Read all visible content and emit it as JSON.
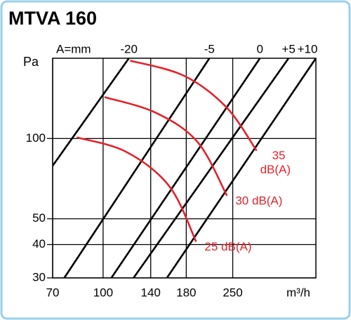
{
  "chart_data": {
    "type": "line",
    "title": "MTVA 160",
    "x_label": "m³/h",
    "y_label": "Pa",
    "line_label": "A=mm",
    "log_x": true,
    "log_y": true,
    "grid": true,
    "xlim": [
      70,
      450
    ],
    "ylim": [
      30,
      200
    ],
    "xticks": [
      70,
      100,
      140,
      180,
      250
    ],
    "yticks": [
      30,
      40,
      50,
      100
    ],
    "series": [
      {
        "name": "-20",
        "color": "#000000",
        "x": [
          70,
          120
        ],
        "values": [
          79,
          200
        ]
      },
      {
        "name": "-5",
        "color": "#000000",
        "x": [
          76,
          212
        ],
        "values": [
          30,
          200
        ]
      },
      {
        "name": "0",
        "color": "#000000",
        "x": [
          106,
          303
        ],
        "values": [
          30,
          200
        ]
      },
      {
        "name": "+5",
        "color": "#000000",
        "x": [
          124,
          371
        ],
        "values": [
          30,
          200
        ]
      },
      {
        "name": "+10",
        "color": "#000000",
        "x": [
          157,
          450
        ],
        "values": [
          30,
          200
        ]
      }
    ],
    "curves": [
      {
        "label": [
          "35",
          "dB(A)"
        ],
        "color": "#e3232c",
        "x": [
          121,
          177,
          239,
          296
        ],
        "values": [
          196,
          172,
          131,
          90
        ]
      },
      {
        "label": [
          "30 dB(A)"
        ],
        "color": "#e3232c",
        "x": [
          101,
          145,
          195,
          240
        ],
        "values": [
          143,
          125,
          97,
          61
        ]
      },
      {
        "label": [
          "25 dB(A)"
        ],
        "color": "#e3232c",
        "x": [
          83,
          118,
          160,
          193
        ],
        "values": [
          101,
          89,
          66,
          41
        ]
      }
    ]
  }
}
